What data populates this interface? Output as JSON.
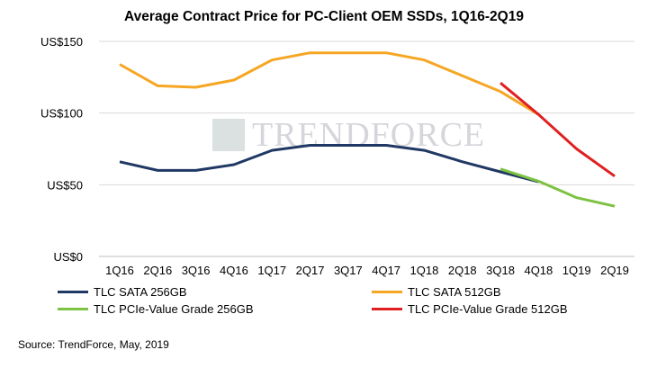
{
  "chart_data": {
    "type": "line",
    "title": "Average Contract Price for PC-Client OEM SSDs, 1Q16-2Q19",
    "xlabel": "",
    "ylabel": "",
    "ylim": [
      0,
      150
    ],
    "yticks": [
      "US$0",
      "US$50",
      "US$100",
      "US$150"
    ],
    "ytick_values": [
      0,
      50,
      100,
      150
    ],
    "grid": true,
    "categories": [
      "1Q16",
      "2Q16",
      "3Q16",
      "4Q16",
      "1Q17",
      "2Q17",
      "3Q17",
      "4Q17",
      "1Q18",
      "2Q18",
      "3Q18",
      "4Q18",
      "1Q19",
      "2Q19"
    ],
    "series": [
      {
        "name": "TLC SATA 256GB",
        "color": "#1f3864",
        "values": [
          66,
          60,
          60,
          64,
          74,
          77.5,
          77.5,
          77.5,
          74,
          66,
          59,
          52,
          null,
          null
        ]
      },
      {
        "name": "TLC SATA 512GB",
        "color": "#f5a623",
        "values": [
          134,
          119,
          118,
          123,
          137,
          142,
          142,
          142,
          137,
          126,
          115,
          99,
          null,
          null
        ]
      },
      {
        "name": "TLC PCIe-Value Grade 256GB",
        "color": "#7dc242",
        "values": [
          null,
          null,
          null,
          null,
          null,
          null,
          null,
          null,
          null,
          null,
          61,
          52.5,
          41,
          35
        ]
      },
      {
        "name": "TLC PCIe-Value Grade 512GB",
        "color": "#e02020",
        "values": [
          null,
          null,
          null,
          null,
          null,
          null,
          null,
          null,
          null,
          null,
          121,
          99,
          75,
          56
        ]
      }
    ],
    "legend_placement": "bottom"
  },
  "watermark": "TRENDFORCE",
  "source": "Source: TrendForce, May, 2019"
}
